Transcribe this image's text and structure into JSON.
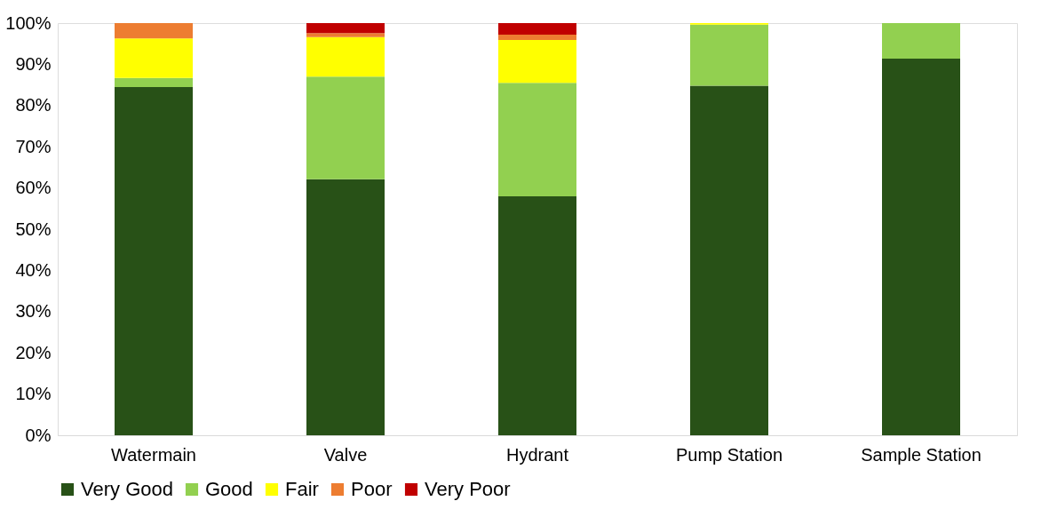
{
  "chart_data": {
    "type": "bar",
    "stacked": true,
    "categories": [
      "Watermain",
      "Valve",
      "Hydrant",
      "Pump Station",
      "Sample Station"
    ],
    "series": [
      {
        "name": "Very Good",
        "color": "#285117",
        "values": [
          84.5,
          62.1,
          58.0,
          84.8,
          91.4
        ]
      },
      {
        "name": "Good",
        "color": "#92d050",
        "values": [
          2.2,
          24.9,
          27.5,
          14.8,
          8.6
        ]
      },
      {
        "name": "Fair",
        "color": "#ffff00",
        "values": [
          9.6,
          9.6,
          10.4,
          0.4,
          0
        ]
      },
      {
        "name": "Poor",
        "color": "#ed7d31",
        "values": [
          3.7,
          1.0,
          1.3,
          0,
          0
        ]
      },
      {
        "name": "Very Poor",
        "color": "#c00000",
        "values": [
          0,
          2.4,
          2.8,
          0,
          0
        ]
      }
    ],
    "ylim": [
      0,
      100
    ],
    "yticks": [
      {
        "value": 0,
        "label": "0%"
      },
      {
        "value": 10,
        "label": "10%"
      },
      {
        "value": 20,
        "label": "20%"
      },
      {
        "value": 30,
        "label": "30%"
      },
      {
        "value": 40,
        "label": "40%"
      },
      {
        "value": 50,
        "label": "50%"
      },
      {
        "value": 60,
        "label": "60%"
      },
      {
        "value": 70,
        "label": "70%"
      },
      {
        "value": 80,
        "label": "80%"
      },
      {
        "value": 90,
        "label": "90%"
      },
      {
        "value": 100,
        "label": "100%"
      }
    ],
    "grid": false,
    "legend": "bottom"
  }
}
